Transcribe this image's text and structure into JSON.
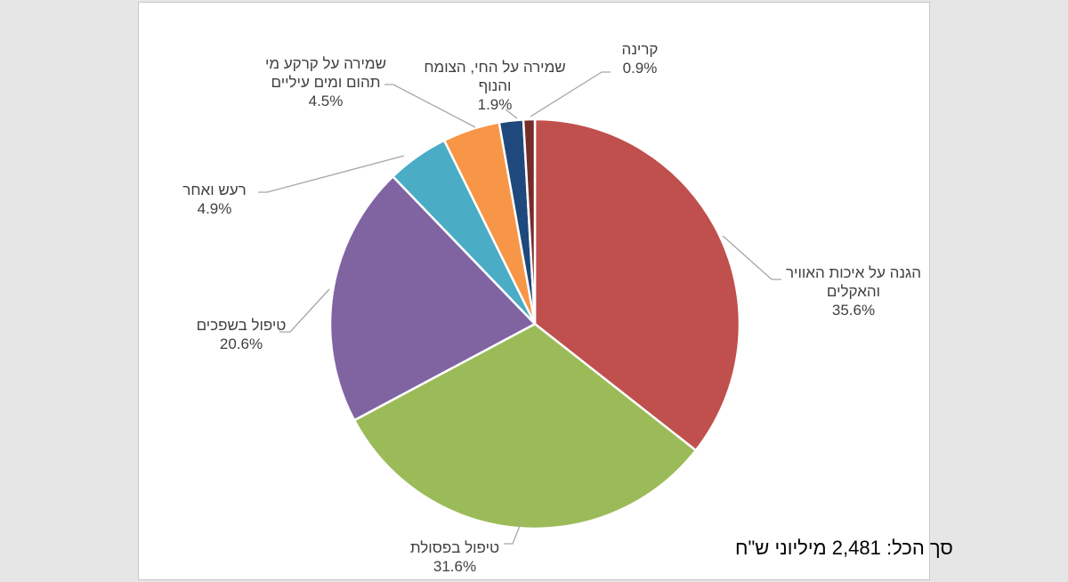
{
  "chart_data": {
    "type": "pie",
    "title": "",
    "slices": [
      {
        "label": "הגנה על איכות האוויר והאקלים",
        "label_lines": [
          "הגנה על איכות האוויר",
          "והאקלים"
        ],
        "value": 35.6,
        "display": "35.6%",
        "color": "#C0504D"
      },
      {
        "label": "טיפול בפסולת",
        "label_lines": [
          "טיפול בפסולת"
        ],
        "value": 31.6,
        "display": "31.6%",
        "color": "#9BBB59"
      },
      {
        "label": "טיפול בשפכים",
        "label_lines": [
          "טיפול בשפכים"
        ],
        "value": 20.6,
        "display": "20.6%",
        "color": "#8064A2"
      },
      {
        "label": "רעש ואחר",
        "label_lines": [
          "רעש ואחר"
        ],
        "value": 4.9,
        "display": "4.9%",
        "color": "#4BACC6"
      },
      {
        "label": "שמירה על קרקע מי תהום ומים עיליים",
        "label_lines": [
          "שמירה על קרקע מי",
          "תהום ומים עיליים"
        ],
        "value": 4.5,
        "display": "4.5%",
        "color": "#F79646"
      },
      {
        "label": "שמירה על החי, הצומח והנוף",
        "label_lines": [
          "שמירה על החי, הצומח",
          "והנוף"
        ],
        "value": 1.9,
        "display": "1.9%",
        "color": "#1F497D"
      },
      {
        "label": "קרינה",
        "label_lines": [
          "קרינה"
        ],
        "value": 0.9,
        "display": "0.9%",
        "color": "#772C2A"
      }
    ],
    "legend": "none",
    "data_labels": "outside with leader lines"
  },
  "total_note": {
    "prefix": "סך הכל:",
    "amount": "2,481",
    "unit": "מיליוני ש\"ח"
  }
}
